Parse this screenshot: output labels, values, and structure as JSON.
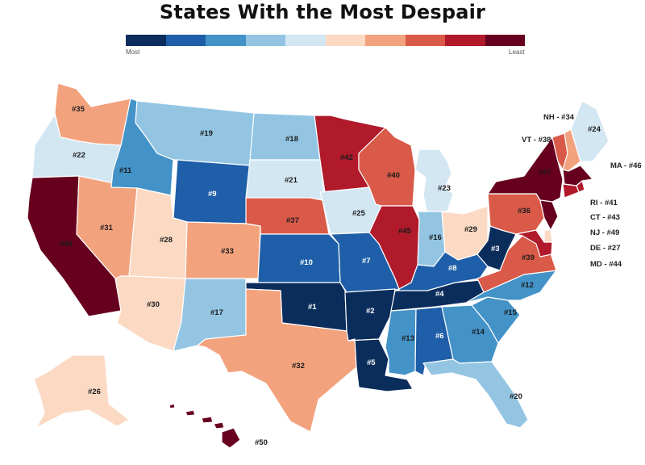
{
  "title": "States With the Most Despair",
  "legend": {
    "low_label": "Most",
    "high_label": "Least",
    "colors": [
      "#0b2d5c",
      "#1f5ea8",
      "#4493c8",
      "#93c5e3",
      "#d3e7f3",
      "#fcd9c3",
      "#f3a27e",
      "#d95a48",
      "#b01a2b",
      "#67001f"
    ]
  },
  "ranks": {
    "OK": "#1",
    "AR": "#2",
    "WV": "#3",
    "TN": "#4",
    "LA": "#5",
    "AL": "#6",
    "MO": "#7",
    "KY": "#8",
    "WY": "#9",
    "KS": "#10",
    "ID": "#11",
    "NC": "#12",
    "MS": "#13",
    "GA": "#14",
    "SC": "#15",
    "IN": "#16",
    "NM": "#17",
    "ND": "#18",
    "MT": "#19",
    "FL": "#20",
    "SD": "#21",
    "OR": "#22",
    "MI": "#23",
    "ME": "#24",
    "IA": "#25",
    "AK": "#26",
    "UT": "#28",
    "OH": "#29",
    "AZ": "#30",
    "NV": "#31",
    "TX": "#32",
    "CO": "#33",
    "WA": "#35",
    "PA": "#36",
    "NE": "#37",
    "VA": "#39",
    "WI": "#40",
    "MN": "#42",
    "IL": "#45",
    "NY": "#47",
    "CA": "#48",
    "HI": "#50"
  },
  "callouts": {
    "NH": "NH - #34",
    "VT": "VT - #38",
    "MA": "MA - #46",
    "RI": "RI - #41",
    "CT": "CT - #43",
    "NJ": "NJ - #49",
    "DE": "DE - #27",
    "MD": "MD - #44"
  },
  "state_colors": {
    "WA": "#f3a27e",
    "OR": "#d3e7f3",
    "CA": "#67001f",
    "NV": "#f3a27e",
    "ID": "#4493c8",
    "MT": "#93c5e3",
    "WY": "#1f5ea8",
    "UT": "#fcd9c3",
    "AZ": "#fcd9c3",
    "CO": "#f3a27e",
    "NM": "#93c5e3",
    "ND": "#93c5e3",
    "SD": "#d3e7f3",
    "NE": "#d95a48",
    "KS": "#1f5ea8",
    "OK": "#0b2d5c",
    "TX": "#f3a27e",
    "MN": "#b01a2b",
    "IA": "#d3e7f3",
    "MO": "#1f5ea8",
    "AR": "#0b2d5c",
    "LA": "#0b2d5c",
    "WI": "#d95a48",
    "IL": "#b01a2b",
    "MI": "#d3e7f3",
    "IN": "#93c5e3",
    "OH": "#fcd9c3",
    "KY": "#1f5ea8",
    "TN": "#0b2d5c",
    "MS": "#4493c8",
    "AL": "#1f5ea8",
    "GA": "#4493c8",
    "FL": "#93c5e3",
    "SC": "#4493c8",
    "NC": "#4493c8",
    "VA": "#d95a48",
    "WV": "#0b2d5c",
    "PA": "#d95a48",
    "NY": "#67001f",
    "ME": "#d3e7f3",
    "NH": "#f3a27e",
    "VT": "#d95a48",
    "MA": "#67001f",
    "RI": "#b01a2b",
    "CT": "#b01a2b",
    "NJ": "#67001f",
    "DE": "#fcd9c3",
    "MD": "#b01a2b",
    "AK": "#fcd9c3",
    "HI": "#67001f"
  }
}
